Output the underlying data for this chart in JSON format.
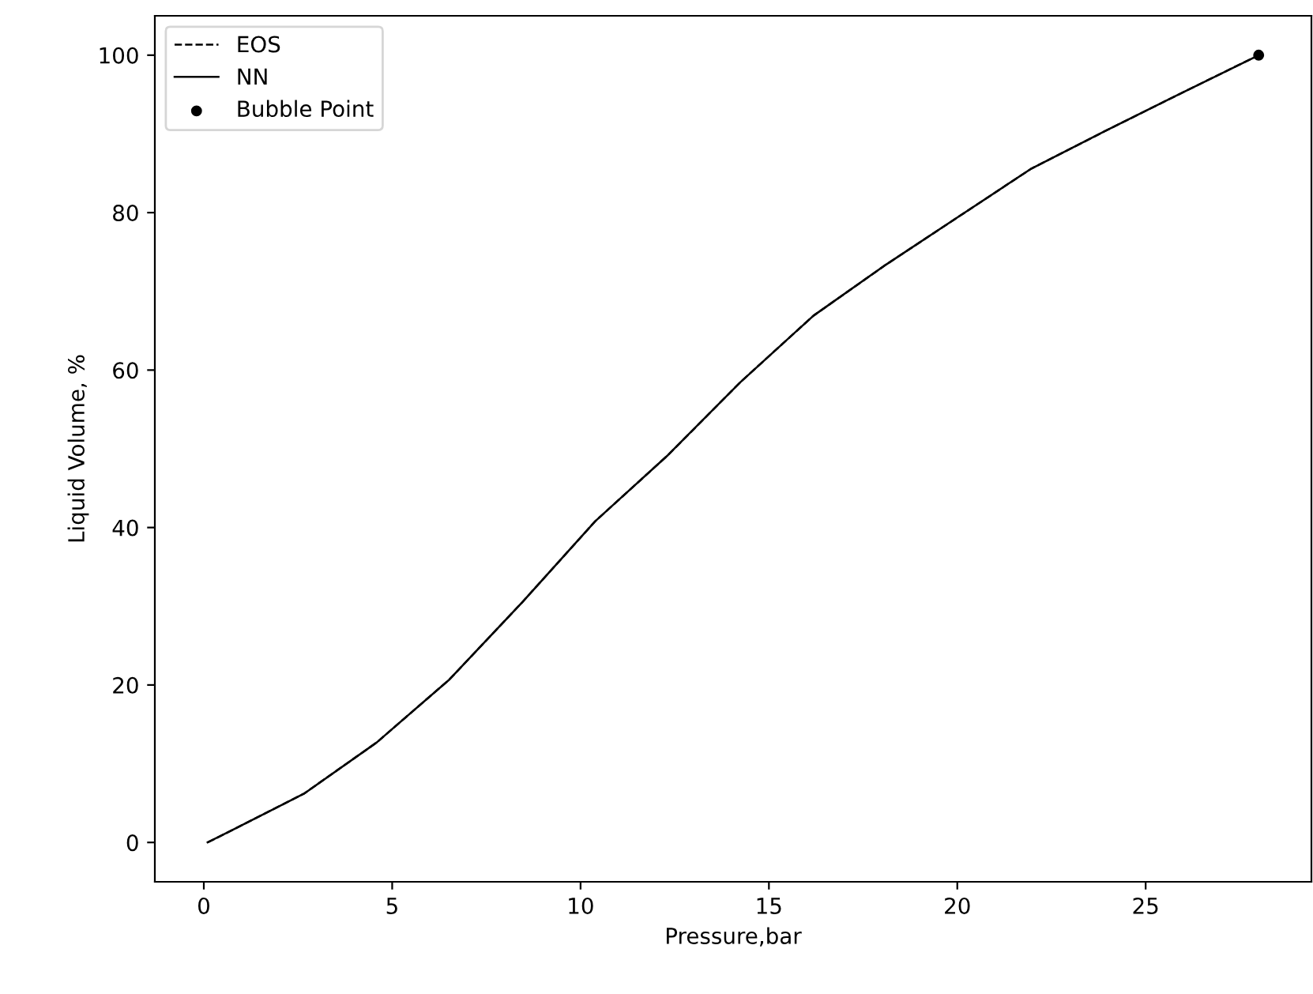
{
  "chart_data": {
    "type": "line",
    "xlabel": "Pressure,bar",
    "ylabel": "Liquid Volume, %",
    "xlim": [
      -1.3,
      29.4
    ],
    "ylim": [
      -5,
      105
    ],
    "xticks": [
      0,
      5,
      10,
      15,
      20,
      25
    ],
    "yticks": [
      0,
      20,
      40,
      60,
      80,
      100
    ],
    "grid": false,
    "legend": "top left",
    "series": [
      {
        "name": "EOS",
        "line_style": "dashed",
        "color": "#000000",
        "x": [
          0.1,
          0.73,
          2.66,
          4.59,
          6.52,
          8.45,
          10.39,
          12.32,
          14.25,
          16.18,
          18.11,
          20.04,
          21.97,
          23.9,
          25.83,
          28
        ],
        "values": [
          0,
          1.5,
          6.2,
          12.7,
          20.7,
          30.5,
          40.8,
          49.2,
          58.5,
          66.9,
          73.4,
          79.5,
          85.6,
          90.3,
          94.9,
          100
        ]
      },
      {
        "name": "NN",
        "line_style": "solid",
        "color": "#000000",
        "x": [
          0.1,
          0.73,
          2.66,
          4.59,
          6.52,
          8.45,
          10.39,
          12.32,
          14.25,
          16.18,
          18.11,
          20.04,
          21.97,
          23.9,
          25.83,
          28
        ],
        "values": [
          0,
          1.5,
          6.2,
          12.7,
          20.7,
          30.5,
          40.8,
          49.2,
          58.5,
          66.9,
          73.4,
          79.5,
          85.6,
          90.3,
          94.9,
          100
        ]
      },
      {
        "name": "Bubble Point",
        "type": "scatter",
        "marker": "circle",
        "color": "#000000",
        "x": [
          28
        ],
        "values": [
          100
        ]
      }
    ]
  }
}
